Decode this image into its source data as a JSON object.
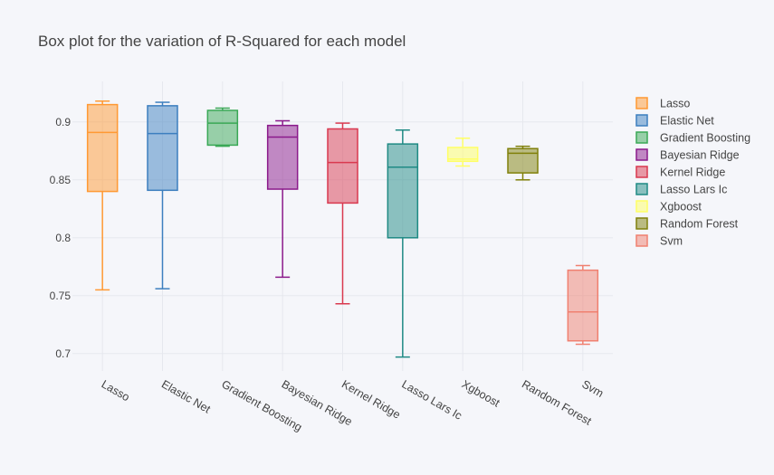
{
  "chart_data": {
    "type": "box",
    "title": "Box plot for the variation of R-Squared for each model",
    "xlabel": "",
    "ylabel": "",
    "ylim": [
      0.685,
      0.935
    ],
    "yticks": [
      "0.7",
      "0.75",
      "0.8",
      "0.85",
      "0.9"
    ],
    "grid": true,
    "legend_position": "right",
    "series": [
      {
        "name": "Lasso",
        "color": "#ff9933",
        "min": 0.755,
        "q1": 0.84,
        "median": 0.891,
        "q3": 0.915,
        "max": 0.918
      },
      {
        "name": "Elastic Net",
        "color": "#3d7fbf",
        "min": 0.756,
        "q1": 0.841,
        "median": 0.89,
        "q3": 0.914,
        "max": 0.917
      },
      {
        "name": "Gradient Boosting",
        "color": "#3aa856",
        "min": 0.879,
        "q1": 0.88,
        "median": 0.899,
        "q3": 0.91,
        "max": 0.912
      },
      {
        "name": "Bayesian Ridge",
        "color": "#8b1a8b",
        "min": 0.766,
        "q1": 0.842,
        "median": 0.887,
        "q3": 0.897,
        "max": 0.901
      },
      {
        "name": "Kernel Ridge",
        "color": "#d9394f",
        "min": 0.743,
        "q1": 0.83,
        "median": 0.865,
        "q3": 0.894,
        "max": 0.899
      },
      {
        "name": "Lasso Lars Ic",
        "color": "#1f8a84",
        "min": 0.697,
        "q1": 0.8,
        "median": 0.861,
        "q3": 0.881,
        "max": 0.893
      },
      {
        "name": "Xgboost",
        "color": "#ffff66",
        "min": 0.862,
        "q1": 0.866,
        "median": 0.868,
        "q3": 0.878,
        "max": 0.886
      },
      {
        "name": "Random Forest",
        "color": "#80800a",
        "min": 0.85,
        "q1": 0.856,
        "median": 0.873,
        "q3": 0.877,
        "max": 0.879
      },
      {
        "name": "Svm",
        "color": "#f08070",
        "min": 0.708,
        "q1": 0.711,
        "median": 0.736,
        "q3": 0.772,
        "max": 0.776
      }
    ]
  }
}
